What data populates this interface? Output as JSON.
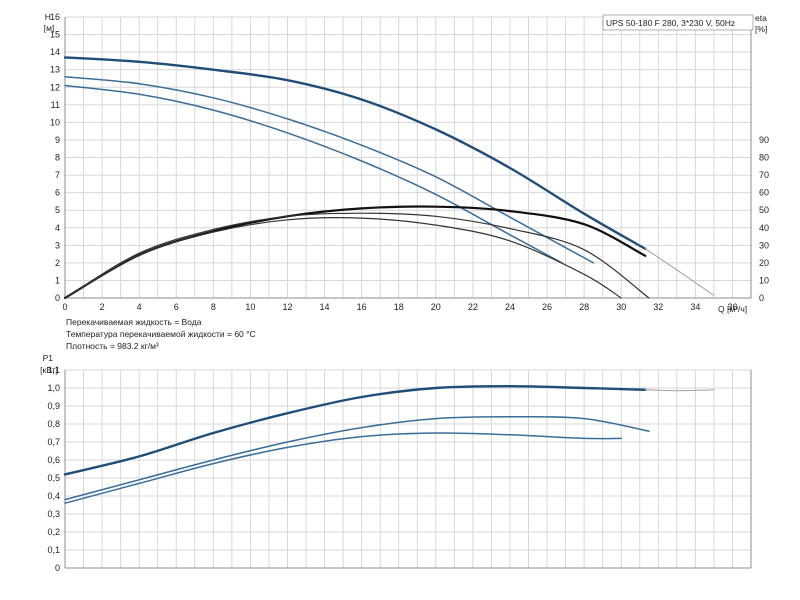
{
  "chart_data": [
    {
      "type": "line",
      "title": "UPS 50-180 F 280, 3*230 V, 50Hz",
      "xlabel": "Q [м³/ч]",
      "ylabel": "H [м]",
      "y2label": "eta [%]",
      "xlim": [
        0,
        37
      ],
      "ylim": [
        0,
        16
      ],
      "y2lim": [
        0,
        100
      ],
      "x_ticks": [
        "0",
        "2",
        "4",
        "6",
        "8",
        "10",
        "12",
        "14",
        "16",
        "18",
        "20",
        "22",
        "24",
        "26",
        "28",
        "30",
        "32",
        "34",
        "36"
      ],
      "y_ticks": [
        "0",
        "1",
        "2",
        "3",
        "4",
        "5",
        "6",
        "7",
        "8",
        "9",
        "10",
        "11",
        "12",
        "13",
        "14",
        "15",
        "16"
      ],
      "y2_ticks": [
        "0",
        "10",
        "20",
        "30",
        "40",
        "50",
        "60",
        "70",
        "80",
        "90"
      ],
      "grid": true,
      "notes": [
        "Перекачиваемая жидкость = Вода",
        "Температура перекачиваемой жидкости = 60 °C",
        "Плотность = 983.2 кг/м³"
      ],
      "series": [
        {
          "kind": "H",
          "color": "#1f4e79",
          "width": 2.4,
          "x": [
            0,
            4,
            8,
            12,
            16,
            20,
            24,
            28,
            31.3
          ],
          "y": [
            13.7,
            13.45,
            13.0,
            12.4,
            11.3,
            9.6,
            7.4,
            4.8,
            2.8
          ]
        },
        {
          "kind": "H-ext",
          "color": "#a0a0a0",
          "width": 1.0,
          "x": [
            31.3,
            33,
            35
          ],
          "y": [
            2.8,
            1.6,
            0.15
          ]
        },
        {
          "kind": "H",
          "color": "#3a6e99",
          "width": 1.5,
          "x": [
            0,
            4,
            8,
            12,
            16,
            20,
            24,
            28.5
          ],
          "y": [
            12.6,
            12.2,
            11.4,
            10.2,
            8.7,
            6.9,
            4.6,
            2.0
          ]
        },
        {
          "kind": "H",
          "color": "#3a6e99",
          "width": 1.5,
          "x": [
            0,
            4,
            8,
            12,
            16,
            20,
            24,
            26.8
          ],
          "y": [
            12.1,
            11.6,
            10.7,
            9.4,
            7.8,
            5.9,
            3.6,
            2.0
          ]
        },
        {
          "kind": "eta",
          "color": "#111111",
          "width": 2.2,
          "x": [
            0,
            4,
            8,
            12,
            16,
            20,
            24,
            28,
            31.3
          ],
          "y": [
            0,
            24.5,
            38,
            46.5,
            51,
            52,
            49.5,
            42,
            24
          ]
        },
        {
          "kind": "eta",
          "color": "#333333",
          "width": 1.2,
          "x": [
            0,
            4,
            8,
            12,
            16,
            20,
            24,
            28,
            31.5
          ],
          "y": [
            0,
            25.5,
            39,
            46.5,
            48.3,
            46.5,
            39.5,
            27.5,
            0
          ]
        },
        {
          "kind": "eta",
          "color": "#333333",
          "width": 1.2,
          "x": [
            0,
            4,
            8,
            12,
            16,
            20,
            24,
            28,
            30
          ],
          "y": [
            0,
            24.5,
            37.5,
            44.5,
            45.5,
            41.5,
            32.5,
            13.5,
            0
          ]
        }
      ]
    },
    {
      "type": "line",
      "xlabel": "",
      "ylabel": "P1 [кВт]",
      "xlim": [
        0,
        37
      ],
      "ylim": [
        0,
        1.1
      ],
      "y_ticks": [
        "0",
        "0,1",
        "0,2",
        "0,3",
        "0,4",
        "0,5",
        "0,6",
        "0,7",
        "0,8",
        "0,9",
        "1,0",
        "1,1"
      ],
      "grid": true,
      "series": [
        {
          "kind": "P1",
          "color": "#1f4e79",
          "width": 2.4,
          "x": [
            0,
            4,
            8,
            12,
            16,
            20,
            24,
            28,
            31.3
          ],
          "y": [
            0.52,
            0.62,
            0.75,
            0.86,
            0.95,
            1.0,
            1.01,
            1.0,
            0.99
          ]
        },
        {
          "kind": "P1-ext",
          "color": "#a0a0a0",
          "width": 1.0,
          "x": [
            31.3,
            33,
            35
          ],
          "y": [
            0.99,
            0.985,
            0.99
          ]
        },
        {
          "kind": "P1",
          "color": "#3a6e99",
          "width": 1.5,
          "x": [
            0,
            4,
            8,
            12,
            16,
            20,
            24,
            28,
            31.5
          ],
          "y": [
            0.38,
            0.49,
            0.6,
            0.7,
            0.78,
            0.83,
            0.84,
            0.83,
            0.76
          ]
        },
        {
          "kind": "P1",
          "color": "#3a6e99",
          "width": 1.5,
          "x": [
            0,
            4,
            8,
            12,
            16,
            20,
            24,
            28,
            30
          ],
          "y": [
            0.36,
            0.47,
            0.58,
            0.67,
            0.73,
            0.75,
            0.74,
            0.72,
            0.72
          ]
        }
      ]
    }
  ]
}
